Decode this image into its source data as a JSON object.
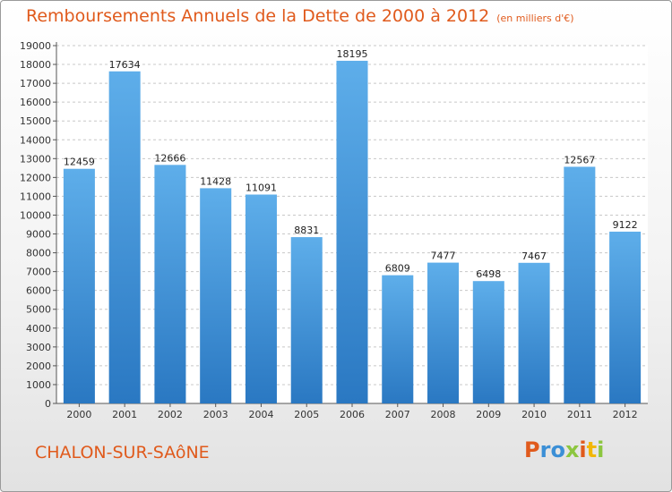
{
  "title": "Remboursements Annuels de la Dette de 2000 à 2012",
  "subtitle": "(en milliers d'€)",
  "city": "CHALON-SUR-SAôNE",
  "logo": "Proxiti",
  "colors": {
    "title": "#e05a1c",
    "bar": "#3b8fd6",
    "logo_letters": [
      "#e05a1c",
      "#3b8fd6",
      "#3b8fd6",
      "#8cc63f",
      "#e05a1c",
      "#f2b705",
      "#8cc63f"
    ]
  },
  "chart_data": {
    "type": "bar",
    "title": "Remboursements Annuels de la Dette de 2000 à 2012",
    "subtitle": "(en milliers d'€)",
    "xlabel": "",
    "ylabel": "",
    "categories": [
      "2000",
      "2001",
      "2002",
      "2003",
      "2004",
      "2005",
      "2006",
      "2007",
      "2008",
      "2009",
      "2010",
      "2011",
      "2012"
    ],
    "values": [
      12459,
      17634,
      12666,
      11428,
      11091,
      8831,
      18195,
      6809,
      7477,
      6498,
      7467,
      12567,
      9122
    ],
    "ylim": [
      0,
      19000
    ],
    "yticks": [
      0,
      1000,
      2000,
      3000,
      4000,
      5000,
      6000,
      7000,
      8000,
      9000,
      10000,
      11000,
      12000,
      13000,
      14000,
      15000,
      16000,
      17000,
      18000,
      19000
    ],
    "grid": "horizontal dashed",
    "legend": "none"
  }
}
